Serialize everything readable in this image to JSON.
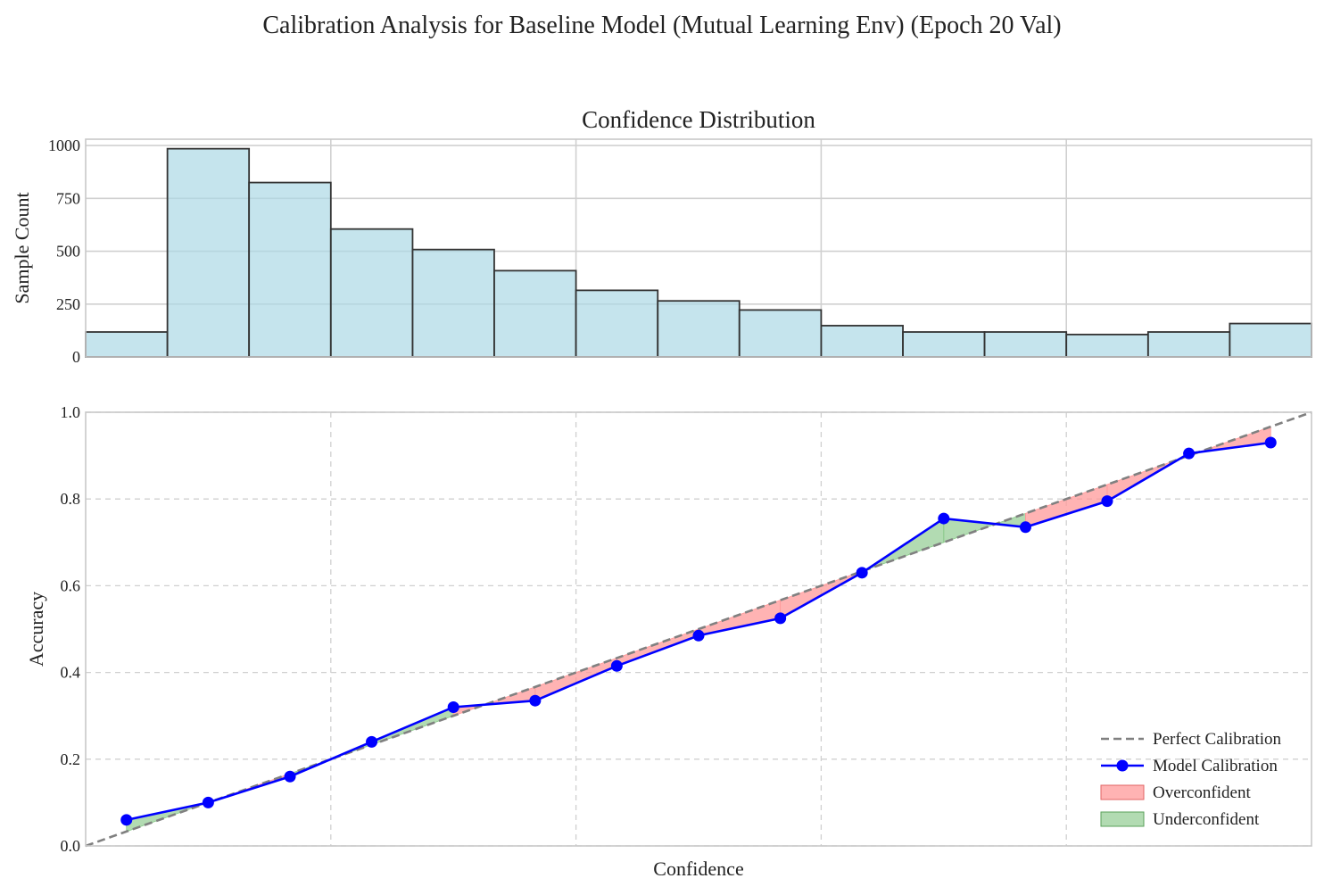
{
  "figure": {
    "suptitle": "Calibration Analysis for Baseline Model (Mutual Learning Env) (Epoch 20 Val)"
  },
  "colors": {
    "histogram_fill": "#add8e6",
    "histogram_edge": "#333333",
    "model_line": "#0000ff",
    "perfect_line": "#808080",
    "overconfident": "#ff9999",
    "underconfident": "#88c888",
    "grid": "#d0d0d0",
    "axes_edge": "#c8c8c8"
  },
  "chart_data": [
    {
      "type": "bar",
      "title": "Confidence Distribution",
      "xlabel": "",
      "ylabel": "Sample Count",
      "xlim": [
        0,
        1
      ],
      "ylim": [
        0,
        1030
      ],
      "yticks": [
        "0",
        "250",
        "500",
        "750",
        "1000"
      ],
      "grid": true,
      "bin_edges": [
        0.0,
        0.0667,
        0.1333,
        0.2,
        0.2667,
        0.3333,
        0.4,
        0.4667,
        0.5333,
        0.6,
        0.6667,
        0.7333,
        0.8,
        0.8667,
        0.9333,
        1.0
      ],
      "values": [
        118,
        985,
        825,
        605,
        508,
        408,
        315,
        265,
        222,
        148,
        118,
        118,
        106,
        118,
        158
      ]
    },
    {
      "type": "line",
      "title": "",
      "xlabel": "Confidence",
      "ylabel": "Accuracy",
      "xlim": [
        0,
        1
      ],
      "ylim": [
        0,
        1
      ],
      "yticks": [
        "0.0",
        "0.2",
        "0.4",
        "0.6",
        "0.8",
        "1.0"
      ],
      "grid": true,
      "legend_position": "lower-right",
      "series": [
        {
          "name": "Perfect Calibration",
          "style": "dashed",
          "x": [
            0,
            1
          ],
          "y": [
            0,
            1
          ]
        },
        {
          "name": "Model Calibration",
          "style": "solid-markers",
          "x": [
            0.0333,
            0.1,
            0.1667,
            0.2333,
            0.3,
            0.3667,
            0.4333,
            0.5,
            0.5667,
            0.6333,
            0.7,
            0.7667,
            0.8333,
            0.9,
            0.9667
          ],
          "y": [
            0.06,
            0.1,
            0.16,
            0.24,
            0.32,
            0.335,
            0.415,
            0.485,
            0.525,
            0.63,
            0.755,
            0.735,
            0.795,
            0.905,
            0.93
          ]
        }
      ],
      "fill_legend": [
        {
          "name": "Overconfident",
          "color_key": "overconfident"
        },
        {
          "name": "Underconfident",
          "color_key": "underconfident"
        }
      ]
    }
  ]
}
